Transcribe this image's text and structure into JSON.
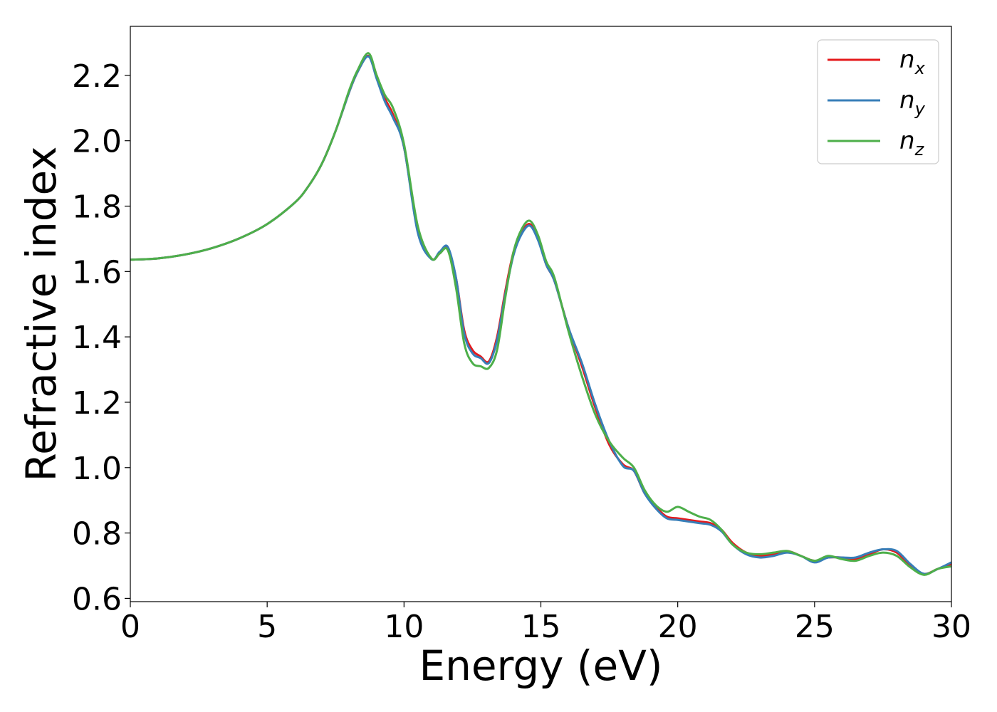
{
  "chart_data": {
    "type": "line",
    "title": "",
    "xlabel": "Energy (eV)",
    "ylabel": "Refractive index",
    "xlim": [
      0,
      30
    ],
    "ylim": [
      0.59,
      2.35
    ],
    "xticks": [
      0,
      5,
      10,
      15,
      20,
      25,
      30
    ],
    "yticks": [
      0.6,
      0.8,
      1.0,
      1.2,
      1.4,
      1.6,
      1.8,
      2.0,
      2.2
    ],
    "xtick_labels": [
      "0",
      "5",
      "10",
      "15",
      "20",
      "25",
      "30"
    ],
    "ytick_labels": [
      "0.6",
      "0.8",
      "1.0",
      "1.2",
      "1.4",
      "1.6",
      "1.8",
      "2.0",
      "2.2"
    ],
    "grid": false,
    "legend_position": "top-right",
    "series": [
      {
        "name": "n_x",
        "legend_main": "n",
        "legend_sub": "x",
        "color": "#e41a1c",
        "x": [
          0,
          1,
          2,
          3,
          4,
          5,
          6,
          6.5,
          7,
          7.5,
          8,
          8.3,
          8.7,
          9.0,
          9.3,
          9.6,
          10.0,
          10.5,
          11.0,
          11.3,
          11.6,
          11.9,
          12.2,
          12.5,
          12.8,
          13.1,
          13.4,
          13.7,
          14.0,
          14.3,
          14.6,
          14.9,
          15.2,
          15.5,
          16.0,
          16.5,
          17.0,
          17.5,
          18.0,
          18.4,
          18.8,
          19.2,
          19.6,
          20.0,
          20.4,
          20.8,
          21.2,
          21.6,
          22.0,
          22.5,
          23.0,
          23.5,
          24.0,
          24.5,
          25.0,
          25.5,
          26.0,
          26.5,
          27.0,
          27.5,
          28.0,
          28.5,
          29.0,
          29.5,
          30.0
        ],
        "y": [
          1.636,
          1.64,
          1.652,
          1.672,
          1.702,
          1.745,
          1.81,
          1.86,
          1.93,
          2.03,
          2.15,
          2.21,
          2.26,
          2.2,
          2.13,
          2.08,
          1.98,
          1.73,
          1.64,
          1.655,
          1.67,
          1.58,
          1.42,
          1.36,
          1.34,
          1.325,
          1.4,
          1.54,
          1.66,
          1.72,
          1.745,
          1.7,
          1.62,
          1.57,
          1.43,
          1.31,
          1.18,
          1.07,
          1.01,
          0.99,
          0.92,
          0.88,
          0.85,
          0.845,
          0.84,
          0.835,
          0.83,
          0.81,
          0.77,
          0.74,
          0.73,
          0.735,
          0.745,
          0.73,
          0.715,
          0.725,
          0.725,
          0.72,
          0.735,
          0.75,
          0.74,
          0.7,
          0.675,
          0.69,
          0.705
        ]
      },
      {
        "name": "n_y",
        "legend_main": "n",
        "legend_sub": "y",
        "color": "#377eb8",
        "x": [
          0,
          1,
          2,
          3,
          4,
          5,
          6,
          6.5,
          7,
          7.5,
          8,
          8.3,
          8.7,
          9.0,
          9.3,
          9.6,
          10.0,
          10.5,
          11.0,
          11.3,
          11.6,
          11.9,
          12.2,
          12.5,
          12.8,
          13.1,
          13.4,
          13.7,
          14.0,
          14.3,
          14.6,
          14.9,
          15.2,
          15.5,
          16.0,
          16.5,
          17.0,
          17.5,
          18.0,
          18.4,
          18.8,
          19.2,
          19.6,
          20.0,
          20.4,
          20.8,
          21.2,
          21.6,
          22.0,
          22.5,
          23.0,
          23.5,
          24.0,
          24.5,
          25.0,
          25.5,
          26.0,
          26.5,
          27.0,
          27.5,
          28.0,
          28.5,
          29.0,
          29.5,
          30.0
        ],
        "y": [
          1.636,
          1.64,
          1.652,
          1.672,
          1.702,
          1.745,
          1.81,
          1.86,
          1.93,
          2.03,
          2.15,
          2.21,
          2.258,
          2.19,
          2.12,
          2.07,
          1.98,
          1.72,
          1.638,
          1.66,
          1.675,
          1.58,
          1.41,
          1.35,
          1.335,
          1.32,
          1.39,
          1.53,
          1.65,
          1.715,
          1.74,
          1.695,
          1.62,
          1.57,
          1.43,
          1.32,
          1.19,
          1.08,
          1.005,
          0.99,
          0.92,
          0.875,
          0.845,
          0.84,
          0.835,
          0.83,
          0.825,
          0.805,
          0.765,
          0.735,
          0.725,
          0.73,
          0.74,
          0.73,
          0.71,
          0.725,
          0.725,
          0.725,
          0.74,
          0.75,
          0.745,
          0.705,
          0.675,
          0.69,
          0.71
        ]
      },
      {
        "name": "n_z",
        "legend_main": "n",
        "legend_sub": "z",
        "color": "#4daf4a",
        "x": [
          0,
          1,
          2,
          3,
          4,
          5,
          6,
          6.5,
          7,
          7.5,
          8,
          8.3,
          8.7,
          9.0,
          9.3,
          9.6,
          10.0,
          10.5,
          11.0,
          11.3,
          11.6,
          11.9,
          12.2,
          12.5,
          12.8,
          13.1,
          13.4,
          13.7,
          14.0,
          14.3,
          14.6,
          14.9,
          15.2,
          15.5,
          16.0,
          16.5,
          17.0,
          17.5,
          18.0,
          18.4,
          18.8,
          19.2,
          19.6,
          20.0,
          20.4,
          20.8,
          21.2,
          21.6,
          22.0,
          22.5,
          23.0,
          23.5,
          24.0,
          24.5,
          25.0,
          25.5,
          26.0,
          26.5,
          27.0,
          27.5,
          28.0,
          28.5,
          29.0,
          29.5,
          30.0
        ],
        "y": [
          1.636,
          1.64,
          1.652,
          1.672,
          1.702,
          1.745,
          1.81,
          1.86,
          1.93,
          2.03,
          2.155,
          2.215,
          2.268,
          2.2,
          2.14,
          2.1,
          1.99,
          1.74,
          1.64,
          1.655,
          1.665,
          1.55,
          1.38,
          1.32,
          1.31,
          1.305,
          1.36,
          1.52,
          1.66,
          1.73,
          1.755,
          1.71,
          1.63,
          1.58,
          1.42,
          1.28,
          1.16,
          1.08,
          1.03,
          1.0,
          0.93,
          0.885,
          0.865,
          0.88,
          0.865,
          0.85,
          0.84,
          0.81,
          0.765,
          0.74,
          0.735,
          0.74,
          0.745,
          0.73,
          0.715,
          0.73,
          0.72,
          0.715,
          0.73,
          0.74,
          0.73,
          0.695,
          0.672,
          0.69,
          0.698
        ]
      }
    ]
  }
}
